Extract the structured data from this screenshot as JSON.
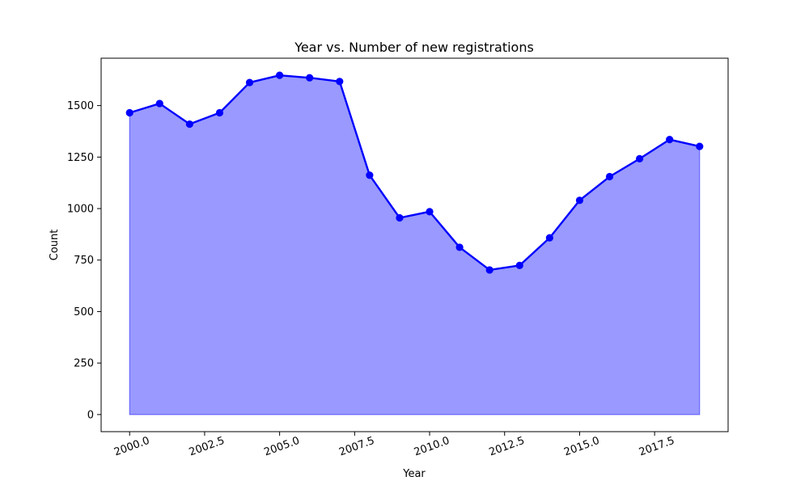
{
  "chart_data": {
    "type": "area",
    "title": "Year vs. Number of new registrations",
    "xlabel": "Year",
    "ylabel": "Count",
    "x": [
      2000,
      2001,
      2002,
      2003,
      2004,
      2005,
      2006,
      2007,
      2008,
      2009,
      2010,
      2011,
      2012,
      2013,
      2014,
      2015,
      2016,
      2017,
      2018,
      2019
    ],
    "series": [
      {
        "values": [
          1465,
          1510,
          1410,
          1465,
          1612,
          1647,
          1635,
          1617,
          1162,
          955,
          985,
          812,
          702,
          724,
          858,
          1040,
          1155,
          1242,
          1335,
          1302
        ],
        "line_color": "#0000ff",
        "fill_color": "#9999ff"
      }
    ],
    "xlim": [
      1999.05,
      2019.95
    ],
    "ylim": [
      -83,
      1730
    ],
    "xticks": [
      2000,
      2002.5,
      2005,
      2007.5,
      2010,
      2012.5,
      2015,
      2017.5
    ],
    "xtick_labels": [
      "2000.0",
      "2002.5",
      "2005.0",
      "2007.5",
      "2010.0",
      "2012.5",
      "2015.0",
      "2017.5"
    ],
    "yticks": [
      0,
      250,
      500,
      750,
      1000,
      1250,
      1500
    ],
    "ytick_labels": [
      "0",
      "250",
      "500",
      "750",
      "1000",
      "1250",
      "1500"
    ],
    "grid": false,
    "legend": "none"
  }
}
